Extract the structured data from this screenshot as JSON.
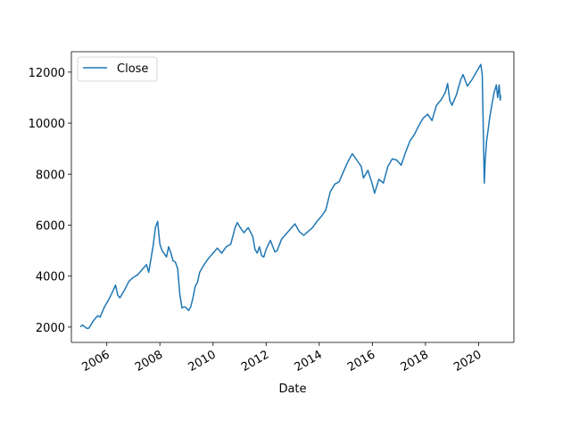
{
  "chart_data": {
    "type": "line",
    "xlabel": "Date",
    "ylabel": "",
    "xlim": [
      "2004-09-01",
      "2021-05-01"
    ],
    "ylim": [
      1400,
      12800
    ],
    "x_ticks": [
      "2006",
      "2008",
      "2010",
      "2012",
      "2014",
      "2016",
      "2018",
      "2020"
    ],
    "y_ticks": [
      2000,
      4000,
      6000,
      8000,
      10000,
      12000
    ],
    "legend": {
      "position": "top-left",
      "entries": [
        "Close"
      ]
    },
    "grid": false,
    "series": [
      {
        "name": "Close",
        "color": "#1f77b4",
        "points": [
          [
            "2005-01-03",
            2010
          ],
          [
            "2005-02-01",
            2080
          ],
          [
            "2005-03-01",
            2020
          ],
          [
            "2005-04-01",
            1950
          ],
          [
            "2005-05-01",
            1960
          ],
          [
            "2005-06-01",
            2110
          ],
          [
            "2005-07-01",
            2250
          ],
          [
            "2005-08-01",
            2350
          ],
          [
            "2005-09-01",
            2450
          ],
          [
            "2005-10-01",
            2390
          ],
          [
            "2005-11-01",
            2600
          ],
          [
            "2005-12-01",
            2800
          ],
          [
            "2006-02-01",
            3100
          ],
          [
            "2006-04-01",
            3450
          ],
          [
            "2006-05-01",
            3650
          ],
          [
            "2006-06-01",
            3250
          ],
          [
            "2006-07-01",
            3150
          ],
          [
            "2006-09-01",
            3450
          ],
          [
            "2006-11-01",
            3800
          ],
          [
            "2007-01-01",
            3950
          ],
          [
            "2007-03-01",
            4050
          ],
          [
            "2007-05-01",
            4250
          ],
          [
            "2007-07-01",
            4450
          ],
          [
            "2007-08-01",
            4150
          ],
          [
            "2007-10-01",
            5200
          ],
          [
            "2007-11-01",
            5900
          ],
          [
            "2007-12-01",
            6150
          ],
          [
            "2008-01-01",
            5250
          ],
          [
            "2008-02-01",
            5000
          ],
          [
            "2008-04-01",
            4750
          ],
          [
            "2008-05-01",
            5150
          ],
          [
            "2008-06-01",
            4900
          ],
          [
            "2008-07-01",
            4600
          ],
          [
            "2008-08-01",
            4550
          ],
          [
            "2008-09-01",
            4300
          ],
          [
            "2008-10-01",
            3300
          ],
          [
            "2008-11-01",
            2750
          ],
          [
            "2008-12-01",
            2800
          ],
          [
            "2009-01-01",
            2750
          ],
          [
            "2009-02-01",
            2650
          ],
          [
            "2009-03-01",
            2800
          ],
          [
            "2009-04-01",
            3150
          ],
          [
            "2009-05-01",
            3600
          ],
          [
            "2009-06-01",
            3750
          ],
          [
            "2009-07-01",
            4150
          ],
          [
            "2009-09-01",
            4450
          ],
          [
            "2009-11-01",
            4700
          ],
          [
            "2010-01-01",
            4900
          ],
          [
            "2010-03-01",
            5100
          ],
          [
            "2010-05-01",
            4900
          ],
          [
            "2010-07-01",
            5150
          ],
          [
            "2010-09-01",
            5250
          ],
          [
            "2010-11-01",
            5900
          ],
          [
            "2010-12-01",
            6100
          ],
          [
            "2011-01-01",
            5950
          ],
          [
            "2011-03-01",
            5700
          ],
          [
            "2011-05-01",
            5900
          ],
          [
            "2011-07-01",
            5550
          ],
          [
            "2011-08-01",
            5050
          ],
          [
            "2011-09-01",
            4900
          ],
          [
            "2011-10-01",
            5150
          ],
          [
            "2011-11-01",
            4800
          ],
          [
            "2011-12-01",
            4750
          ],
          [
            "2012-01-01",
            5050
          ],
          [
            "2012-03-01",
            5400
          ],
          [
            "2012-05-01",
            4950
          ],
          [
            "2012-06-01",
            5000
          ],
          [
            "2012-08-01",
            5450
          ],
          [
            "2012-10-01",
            5650
          ],
          [
            "2012-12-01",
            5850
          ],
          [
            "2013-02-01",
            6050
          ],
          [
            "2013-04-01",
            5750
          ],
          [
            "2013-06-01",
            5600
          ],
          [
            "2013-08-01",
            5750
          ],
          [
            "2013-10-01",
            5900
          ],
          [
            "2013-12-01",
            6150
          ],
          [
            "2014-02-01",
            6350
          ],
          [
            "2014-04-01",
            6600
          ],
          [
            "2014-06-01",
            7300
          ],
          [
            "2014-08-01",
            7600
          ],
          [
            "2014-10-01",
            7700
          ],
          [
            "2014-12-01",
            8100
          ],
          [
            "2015-02-01",
            8500
          ],
          [
            "2015-04-01",
            8800
          ],
          [
            "2015-06-01",
            8550
          ],
          [
            "2015-08-01",
            8300
          ],
          [
            "2015-09-01",
            7850
          ],
          [
            "2015-11-01",
            8150
          ],
          [
            "2016-01-01",
            7600
          ],
          [
            "2016-02-01",
            7250
          ],
          [
            "2016-04-01",
            7800
          ],
          [
            "2016-06-01",
            7650
          ],
          [
            "2016-08-01",
            8300
          ],
          [
            "2016-10-01",
            8600
          ],
          [
            "2016-12-01",
            8550
          ],
          [
            "2017-02-01",
            8350
          ],
          [
            "2017-04-01",
            8850
          ],
          [
            "2017-06-01",
            9300
          ],
          [
            "2017-08-01",
            9550
          ],
          [
            "2017-10-01",
            9900
          ],
          [
            "2017-12-01",
            10200
          ],
          [
            "2018-02-01",
            10350
          ],
          [
            "2018-04-01",
            10100
          ],
          [
            "2018-06-01",
            10700
          ],
          [
            "2018-08-01",
            10900
          ],
          [
            "2018-10-01",
            11200
          ],
          [
            "2018-11-01",
            11550
          ],
          [
            "2018-12-01",
            10900
          ],
          [
            "2019-01-01",
            10700
          ],
          [
            "2019-03-01",
            11100
          ],
          [
            "2019-05-01",
            11700
          ],
          [
            "2019-06-01",
            11900
          ],
          [
            "2019-08-01",
            11450
          ],
          [
            "2019-10-01",
            11700
          ],
          [
            "2019-12-01",
            12000
          ],
          [
            "2020-01-01",
            12150
          ],
          [
            "2020-02-01",
            12300
          ],
          [
            "2020-02-20",
            11900
          ],
          [
            "2020-03-10",
            9200
          ],
          [
            "2020-03-20",
            7650
          ],
          [
            "2020-04-01",
            8500
          ],
          [
            "2020-04-20",
            9300
          ],
          [
            "2020-05-10",
            9700
          ],
          [
            "2020-06-01",
            10200
          ],
          [
            "2020-07-01",
            10700
          ],
          [
            "2020-08-01",
            11200
          ],
          [
            "2020-09-01",
            11500
          ],
          [
            "2020-09-20",
            11000
          ],
          [
            "2020-10-10",
            11500
          ],
          [
            "2020-10-25",
            10900
          ],
          [
            "2020-11-01",
            11100
          ]
        ]
      }
    ]
  }
}
